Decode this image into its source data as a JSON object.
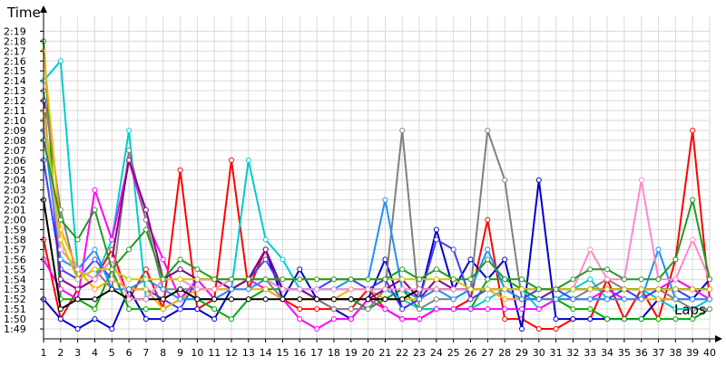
{
  "chart_data": {
    "type": "line",
    "title": "",
    "xlabel": "Laps",
    "ylabel": "Time",
    "x": [
      1,
      2,
      3,
      4,
      5,
      6,
      7,
      8,
      9,
      10,
      11,
      12,
      13,
      14,
      15,
      16,
      17,
      18,
      19,
      20,
      21,
      22,
      23,
      24,
      25,
      26,
      27,
      28,
      29,
      30,
      31,
      32,
      33,
      34,
      35,
      36,
      37,
      38,
      39,
      40
    ],
    "xlim": [
      1,
      40
    ],
    "ylim": [
      108,
      140.5
    ],
    "ytick_values": [
      109,
      110,
      111,
      112,
      113,
      114,
      115,
      116,
      117,
      118,
      119,
      120,
      121,
      122,
      123,
      124,
      125,
      126,
      127,
      128,
      129,
      130,
      131,
      132,
      133,
      134,
      135,
      136,
      137,
      138,
      139
    ],
    "ytick_labels": [
      "1:49",
      "1:50",
      "1:51",
      "1:52",
      "1:53",
      "1:54",
      "1:55",
      "1:56",
      "1:57",
      "1:58",
      "1:59",
      "2:00",
      "2:01",
      "2:02",
      "2:03",
      "2:04",
      "2:05",
      "2:06",
      "2:07",
      "2:08",
      "2:09",
      "2:10",
      "2:11",
      "2:12",
      "2:13",
      "2:14",
      "2:15",
      "2:16",
      "2:17",
      "2:18",
      "2:19"
    ],
    "grid": true,
    "legend": false,
    "series": [
      {
        "color": "#ff0000",
        "values": [
          118,
          110,
          113,
          114,
          117,
          112,
          115,
          111,
          125,
          111,
          112,
          126,
          113,
          117,
          112,
          111,
          111,
          111,
          111,
          113,
          111,
          110,
          110,
          111,
          111,
          112,
          120,
          110,
          110,
          109,
          109,
          110,
          110,
          114,
          110,
          113,
          110,
          116,
          129,
          112
        ]
      },
      {
        "color": "#0000cc",
        "values": [
          112,
          110,
          109,
          110,
          109,
          113,
          110,
          110,
          111,
          111,
          110,
          113,
          114,
          117,
          112,
          115,
          112,
          111,
          110,
          112,
          116,
          111,
          112,
          119,
          113,
          116,
          114,
          116,
          109,
          124,
          110,
          110,
          110,
          110,
          110,
          110,
          112,
          112,
          112,
          114
        ]
      },
      {
        "color": "#00aa00",
        "values": [
          138,
          112,
          112,
          111,
          115,
          111,
          111,
          111,
          112,
          112,
          111,
          110,
          112,
          113,
          113,
          113,
          112,
          112,
          112,
          111,
          112,
          113,
          111,
          111,
          111,
          111,
          114,
          114,
          113,
          112,
          112,
          111,
          111,
          110,
          110,
          110,
          110,
          110,
          110,
          111
        ]
      },
      {
        "color": "#00cccc",
        "values": [
          134,
          136,
          115,
          114,
          118,
          129,
          112,
          114,
          115,
          114,
          114,
          113,
          126,
          118,
          116,
          113,
          113,
          113,
          113,
          113,
          113,
          112,
          111,
          111,
          111,
          111,
          112,
          113,
          113,
          111,
          112,
          113,
          114,
          112,
          113,
          113,
          112,
          111,
          111,
          112
        ]
      },
      {
        "color": "#ff00ff",
        "values": [
          116,
          113,
          112,
          123,
          118,
          126,
          120,
          116,
          112,
          114,
          112,
          113,
          114,
          113,
          112,
          110,
          109,
          110,
          110,
          112,
          111,
          110,
          110,
          111,
          111,
          111,
          111,
          111,
          111,
          111,
          112,
          112,
          112,
          113,
          112,
          112,
          113,
          114,
          113,
          112
        ]
      },
      {
        "color": "#808080",
        "values": [
          133,
          121,
          114,
          115,
          113,
          127,
          120,
          113,
          113,
          113,
          113,
          113,
          114,
          114,
          112,
          112,
          112,
          111,
          111,
          111,
          113,
          129,
          111,
          112,
          112,
          113,
          129,
          124,
          112,
          112,
          112,
          112,
          113,
          114,
          113,
          113,
          113,
          112,
          111,
          111
        ]
      },
      {
        "color": "#4040ff",
        "values": [
          126,
          115,
          114,
          116,
          114,
          113,
          113,
          112,
          111,
          114,
          114,
          113,
          114,
          116,
          113,
          113,
          113,
          114,
          114,
          113,
          114,
          111,
          112,
          118,
          117,
          112,
          113,
          112,
          112,
          113,
          113,
          112,
          112,
          112,
          113,
          112,
          113,
          113,
          112,
          112
        ]
      },
      {
        "color": "#ffaa00",
        "values": [
          137,
          119,
          115,
          113,
          114,
          113,
          113,
          111,
          112,
          113,
          113,
          113,
          113,
          113,
          112,
          112,
          112,
          112,
          113,
          113,
          112,
          112,
          112,
          113,
          113,
          113,
          113,
          112,
          112,
          112,
          112,
          112,
          112,
          112,
          112,
          112,
          112,
          112,
          112,
          112
        ]
      },
      {
        "color": "#880088",
        "values": [
          132,
          114,
          113,
          114,
          116,
          126,
          121,
          114,
          115,
          114,
          114,
          113,
          114,
          117,
          113,
          113,
          112,
          112,
          112,
          112,
          113,
          114,
          112,
          114,
          113,
          113,
          113,
          113,
          112,
          112,
          113,
          113,
          113,
          113,
          113,
          113,
          113,
          113,
          113,
          113
        ]
      },
      {
        "color": "#1e90ff",
        "values": [
          129,
          116,
          115,
          117,
          113,
          113,
          114,
          113,
          112,
          112,
          112,
          113,
          113,
          114,
          113,
          113,
          113,
          113,
          114,
          114,
          122,
          113,
          112,
          113,
          112,
          113,
          117,
          113,
          112,
          112,
          112,
          112,
          112,
          112,
          112,
          112,
          117,
          112,
          112,
          112
        ]
      },
      {
        "color": "#000000",
        "values": [
          122,
          111,
          112,
          112,
          113,
          112,
          112,
          112,
          113,
          112,
          112,
          112,
          112,
          112,
          112,
          112,
          112,
          112,
          112,
          112,
          112,
          112,
          113,
          113,
          113,
          113,
          113,
          113,
          113,
          113,
          113,
          113,
          113,
          113,
          113,
          113,
          113,
          113,
          113,
          113
        ]
      },
      {
        "color": "#ff88cc",
        "values": [
          130,
          117,
          115,
          114,
          116,
          112,
          112,
          114,
          114,
          113,
          113,
          114,
          114,
          114,
          113,
          113,
          113,
          113,
          113,
          113,
          113,
          113,
          113,
          113,
          113,
          113,
          113,
          113,
          113,
          113,
          113,
          113,
          117,
          114,
          114,
          124,
          114,
          114,
          118,
          114
        ]
      },
      {
        "color": "#cccc00",
        "values": [
          131,
          118,
          114,
          115,
          115,
          114,
          114,
          114,
          114,
          114,
          114,
          114,
          114,
          114,
          114,
          114,
          114,
          114,
          114,
          114,
          114,
          114,
          114,
          114,
          114,
          113,
          113,
          113,
          113,
          113,
          113,
          113,
          113,
          113,
          113,
          113,
          113,
          113,
          113,
          113
        ]
      },
      {
        "color": "#229922",
        "values": [
          128,
          120,
          118,
          121,
          115,
          117,
          119,
          114,
          116,
          115,
          114,
          114,
          114,
          114,
          114,
          114,
          114,
          114,
          114,
          114,
          114,
          115,
          114,
          115,
          114,
          114,
          116,
          114,
          114,
          113,
          113,
          114,
          115,
          115,
          114,
          114,
          114,
          116,
          122,
          114
        ]
      }
    ]
  }
}
